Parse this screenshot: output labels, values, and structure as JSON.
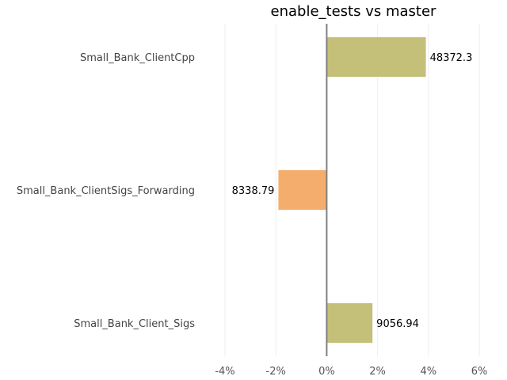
{
  "chart_data": {
    "type": "bar",
    "orientation": "horizontal",
    "title": "enable_tests vs master",
    "xlabel": "",
    "ylabel": "",
    "categories": [
      "Small_Bank_ClientCpp",
      "Small_Bank_ClientSigs_Forwarding",
      "Small_Bank_Client_Sigs"
    ],
    "values": [
      3.9,
      -1.9,
      1.8
    ],
    "data_labels": [
      "48372.3",
      "8338.79",
      "9056.94"
    ],
    "xlim": [
      -4,
      6
    ],
    "x_ticks": [
      -4,
      -2,
      0,
      2,
      4,
      6
    ],
    "x_tick_labels": [
      "-4%",
      "-2%",
      "0%",
      "2%",
      "4%",
      "6%"
    ],
    "grid": true,
    "legend": "none",
    "colors": {
      "positive": "#c4c07a",
      "negative": "#f5ad6e",
      "zero_line": "#808080",
      "grid": "#eeeeee"
    }
  }
}
